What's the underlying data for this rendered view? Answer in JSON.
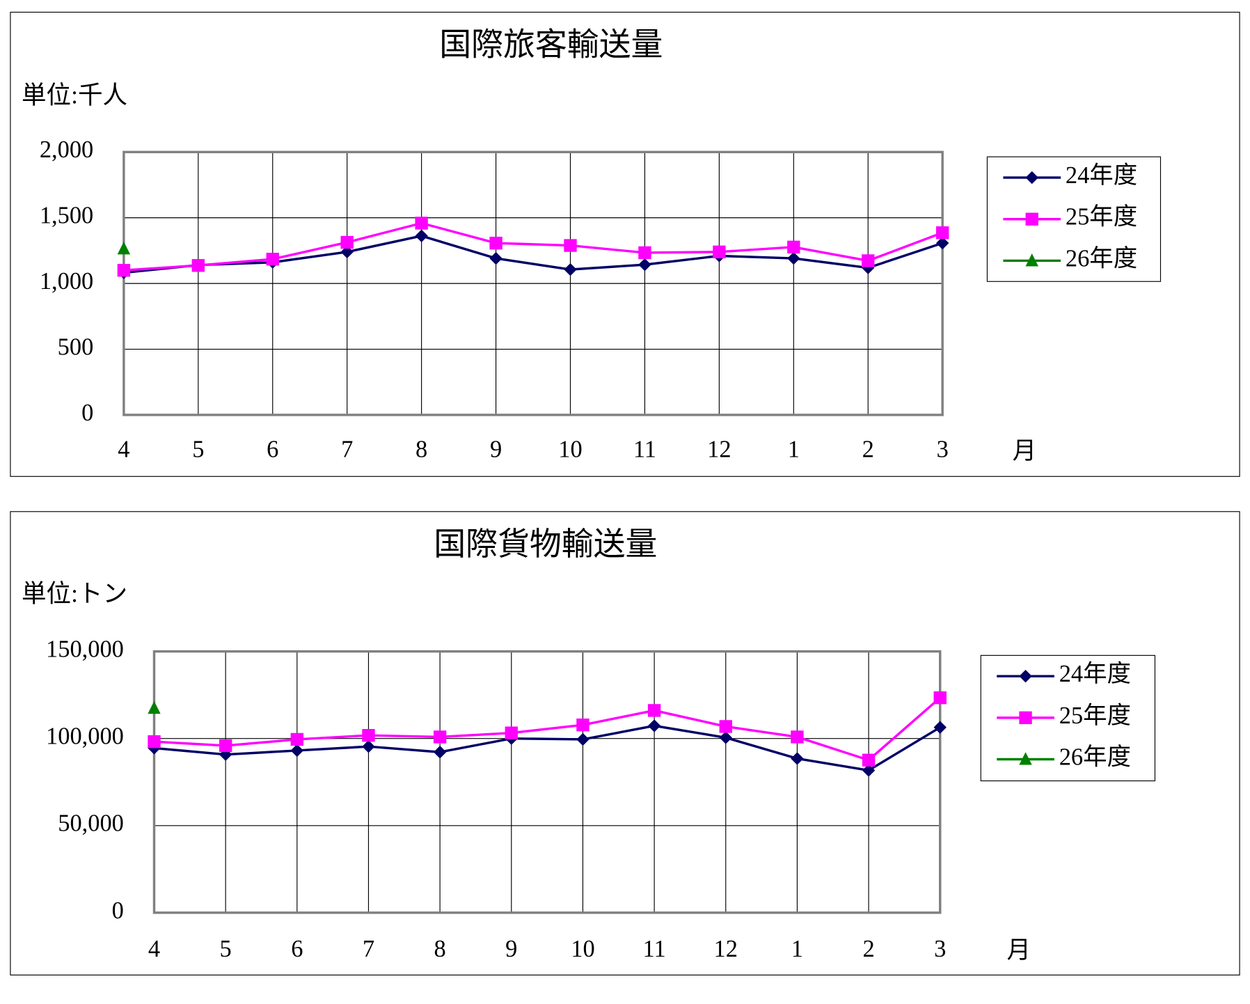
{
  "chart_data": [
    {
      "type": "line",
      "title": "国際旅客輸送量",
      "unit_label": "単位:千人",
      "x_label": "月",
      "categories": [
        "4",
        "5",
        "6",
        "7",
        "8",
        "9",
        "10",
        "11",
        "12",
        "1",
        "2",
        "3"
      ],
      "ylim": [
        0,
        2000
      ],
      "yticks": [
        0,
        500,
        {
          "value": 1000,
          "label": "1,000"
        },
        {
          "value": 1500,
          "label": "1,500"
        },
        {
          "value": 2000,
          "label": "2,000"
        }
      ],
      "grid": true,
      "legend": "right",
      "series": [
        {
          "name": "24年度",
          "color": "#000066",
          "marker": "diamond",
          "values": [
            1082,
            1140,
            1161,
            1240,
            1362,
            1191,
            1106,
            1143,
            1210,
            1191,
            1119,
            1307
          ]
        },
        {
          "name": "25年度",
          "color": "#ff00ff",
          "marker": "square",
          "values": [
            1100,
            1137,
            1185,
            1313,
            1459,
            1307,
            1289,
            1234,
            1240,
            1277,
            1173,
            1386
          ]
        },
        {
          "name": "26年度",
          "color": "#008000",
          "marker": "triangle",
          "values": [
            1264,
            null,
            null,
            null,
            null,
            null,
            null,
            null,
            null,
            null,
            null,
            null
          ]
        }
      ]
    },
    {
      "type": "line",
      "title": "国際貨物輸送量",
      "unit_label": "単位:トン",
      "x_label": "月",
      "categories": [
        "4",
        "5",
        "6",
        "7",
        "8",
        "9",
        "10",
        "11",
        "12",
        "1",
        "2",
        "3"
      ],
      "ylim": [
        0,
        150000
      ],
      "yticks": [
        0,
        {
          "value": 50000,
          "label": "50,000"
        },
        {
          "value": 100000,
          "label": "100,000"
        },
        {
          "value": 150000,
          "label": "150,000"
        }
      ],
      "grid": true,
      "legend": "right",
      "series": [
        {
          "name": "24年度",
          "color": "#000066",
          "marker": "diamond",
          "values": [
            94500,
            90800,
            93100,
            95400,
            92200,
            100000,
            99500,
            107300,
            100500,
            88500,
            81700,
            106400
          ]
        },
        {
          "name": "25年度",
          "color": "#ff00ff",
          "marker": "square",
          "values": [
            98200,
            95900,
            99500,
            101800,
            100900,
            103200,
            107800,
            116100,
            106900,
            100900,
            87600,
            123400
          ]
        },
        {
          "name": "26年度",
          "color": "#008000",
          "marker": "triangle",
          "values": [
            117400,
            null,
            null,
            null,
            null,
            null,
            null,
            null,
            null,
            null,
            null,
            null
          ]
        }
      ]
    }
  ]
}
